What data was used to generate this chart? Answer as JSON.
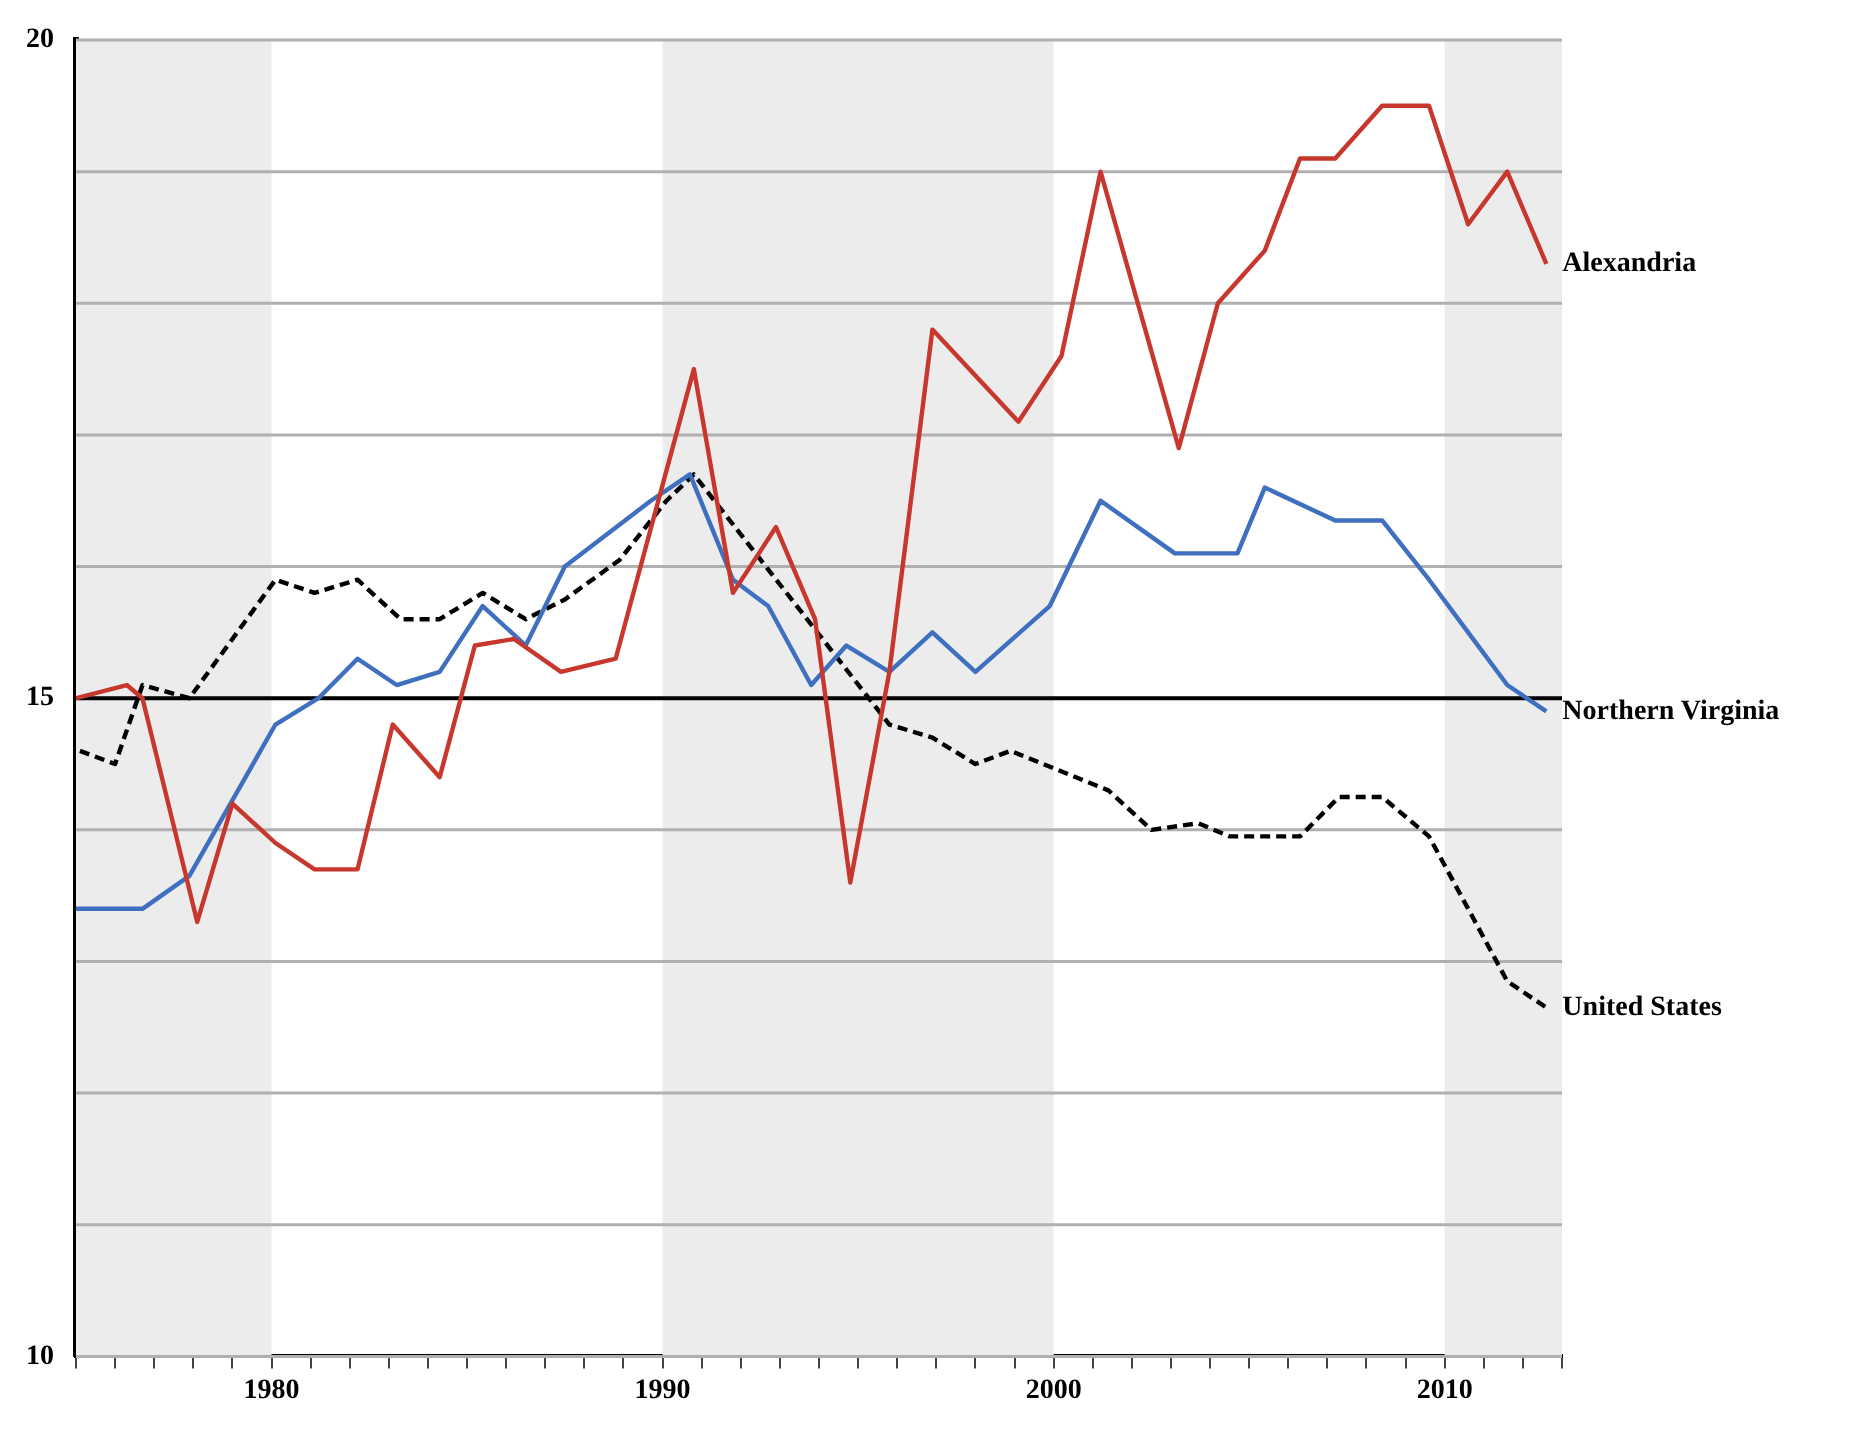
{
  "chart_data": {
    "type": "line",
    "xlim": [
      1975,
      2013
    ],
    "ylim": [
      10,
      20
    ],
    "xticks": [
      {
        "value": 1975,
        "label": null
      },
      {
        "value": 1976,
        "label": null
      },
      {
        "value": 1977,
        "label": null
      },
      {
        "value": 1978,
        "label": null
      },
      {
        "value": 1979,
        "label": null
      },
      1980,
      {
        "value": 1981,
        "label": null
      },
      {
        "value": 1982,
        "label": null
      },
      {
        "value": 1983,
        "label": null
      },
      {
        "value": 1984,
        "label": null
      },
      {
        "value": 1985,
        "label": null
      },
      {
        "value": 1986,
        "label": null
      },
      {
        "value": 1987,
        "label": null
      },
      {
        "value": 1988,
        "label": null
      },
      {
        "value": 1989,
        "label": null
      },
      1990,
      {
        "value": 1991,
        "label": null
      },
      {
        "value": 1992,
        "label": null
      },
      {
        "value": 1993,
        "label": null
      },
      {
        "value": 1994,
        "label": null
      },
      {
        "value": 1995,
        "label": null
      },
      {
        "value": 1996,
        "label": null
      },
      {
        "value": 1997,
        "label": null
      },
      {
        "value": 1998,
        "label": null
      },
      {
        "value": 1999,
        "label": null
      },
      2000,
      {
        "value": 2001,
        "label": null
      },
      {
        "value": 2002,
        "label": null
      },
      {
        "value": 2003,
        "label": null
      },
      {
        "value": 2004,
        "label": null
      },
      {
        "value": 2005,
        "label": null
      },
      {
        "value": 2006,
        "label": null
      },
      {
        "value": 2007,
        "label": null
      },
      {
        "value": 2008,
        "label": null
      },
      {
        "value": 2009,
        "label": null
      },
      2010,
      {
        "value": 2011,
        "label": null
      },
      {
        "value": 2012,
        "label": null
      },
      {
        "value": 2013,
        "label": null
      }
    ],
    "yticks": [
      10,
      {
        "value": 11,
        "label": null
      },
      {
        "value": 12,
        "label": null
      },
      {
        "value": 13,
        "label": null
      },
      {
        "value": 14,
        "label": null
      },
      15,
      {
        "value": 16,
        "label": null
      },
      {
        "value": 17,
        "label": null
      },
      {
        "value": 18,
        "label": null
      },
      {
        "value": 19,
        "label": null
      },
      20
    ],
    "grid": "y",
    "legend": false,
    "marker": "none",
    "bands": [
      {
        "axis": "x",
        "from": 1975,
        "to": 1980,
        "color": "#ececec"
      },
      {
        "axis": "x",
        "from": 1990,
        "to": 2000,
        "color": "#ececec"
      },
      {
        "axis": "x",
        "from": 2010,
        "to": 2013,
        "color": "#ececec"
      }
    ],
    "ref_lines": [
      {
        "axis": "y",
        "value": 15,
        "color": "#000000"
      }
    ],
    "series": [
      {
        "name": "Alexandria",
        "color": "#c8372d",
        "line_style": "solid",
        "x": [
          1975.0,
          1976.3,
          1976.7,
          1978.1,
          1979.0,
          1980.1,
          1981.1,
          1982.2,
          1983.1,
          1984.3,
          1985.2,
          1986.2,
          1987.4,
          1988.8,
          1990.8,
          1991.8,
          1992.9,
          1993.9,
          1994.8,
          1995.8,
          1996.9,
          1999.1,
          2000.2,
          2001.2,
          2003.2,
          2004.2,
          2005.4,
          2006.3,
          2007.2,
          2008.4,
          2009.6,
          2010.6,
          2011.6,
          2012.6
        ],
        "values": [
          15.0,
          15.1,
          15.0,
          13.3,
          14.2,
          13.9,
          13.7,
          13.7,
          14.8,
          14.4,
          15.4,
          15.45,
          15.2,
          15.3,
          17.5,
          15.8,
          16.3,
          15.6,
          13.6,
          15.2,
          17.8,
          17.1,
          17.6,
          19.0,
          16.9,
          18.0,
          18.4,
          19.1,
          19.1,
          19.5,
          19.5,
          18.6,
          19.0,
          18.3
        ]
      },
      {
        "name": "Northern Virginia",
        "color": "#3f6fbf",
        "line_style": "solid",
        "x": [
          1975.0,
          1976.7,
          1977.9,
          1980.1,
          1981.2,
          1982.2,
          1983.2,
          1984.3,
          1985.4,
          1986.5,
          1987.5,
          1989.7,
          1990.7,
          1991.8,
          1992.7,
          1993.8,
          1994.7,
          1995.8,
          1996.9,
          1998.0,
          1999.9,
          2001.2,
          2003.1,
          2004.7,
          2005.4,
          2007.2,
          2008.4,
          2009.6,
          2010.6,
          2011.6,
          2012.6
        ],
        "values": [
          13.4,
          13.4,
          13.65,
          14.8,
          15.0,
          15.3,
          15.1,
          15.2,
          15.7,
          15.4,
          16.0,
          16.5,
          16.7,
          15.9,
          15.7,
          15.1,
          15.4,
          15.2,
          15.5,
          15.2,
          15.7,
          16.5,
          16.1,
          16.1,
          16.6,
          16.35,
          16.35,
          15.9,
          15.5,
          15.1,
          14.9
        ]
      },
      {
        "name": "United States",
        "color": "#000000",
        "line_style": "dashed",
        "x": [
          1975.1,
          1976.0,
          1976.7,
          1977.9,
          1980.1,
          1981.1,
          1982.2,
          1983.3,
          1984.3,
          1985.4,
          1986.5,
          1987.5,
          1988.9,
          1990.1,
          1990.8,
          1995.8,
          1996.9,
          1998.0,
          1998.9,
          2001.4,
          2002.5,
          2003.7,
          2004.5,
          2006.3,
          2007.3,
          2008.4,
          2009.6,
          2011.6,
          2012.6
        ],
        "values": [
          14.6,
          14.5,
          15.1,
          15.0,
          15.9,
          15.8,
          15.9,
          15.6,
          15.6,
          15.8,
          15.6,
          15.75,
          16.05,
          16.5,
          16.7,
          14.8,
          14.7,
          14.5,
          14.6,
          14.3,
          14.0,
          14.05,
          13.95,
          13.95,
          14.25,
          14.25,
          13.95,
          12.85,
          12.65
        ]
      }
    ]
  }
}
